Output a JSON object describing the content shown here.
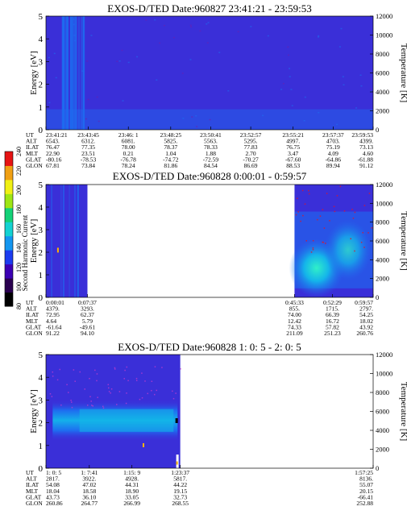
{
  "colors": {
    "background_level": "#3a2fd8",
    "mid_level": "#1e6cf0",
    "high_level": "#12b8e6",
    "peak_level": "#28e6d8",
    "spike_orange": "#ffb400"
  },
  "colorbar": {
    "label": "Second Harmonic Current",
    "ticks": [
      "80",
      "100",
      "120",
      "140",
      "160",
      "180",
      "200",
      "220",
      "240"
    ],
    "colors": [
      "#000000",
      "#2a0050",
      "#3c00b4",
      "#1c3cf0",
      "#1496f0",
      "#14d2d2",
      "#14d278",
      "#9ee614",
      "#f0f014",
      "#f0a014",
      "#e61414"
    ]
  },
  "chart_data": [
    {
      "type": "heatmap",
      "title": "EXOS-D/TED  Date:960827  23:41:21 - 23:59:53",
      "ylabel": "Energy [eV]",
      "y2label": "Temperature [K]",
      "ylim": [
        0,
        5
      ],
      "y2lim": [
        0,
        12000
      ],
      "yticks": [
        "0",
        "1",
        "2",
        "3",
        "4",
        "5"
      ],
      "y2ticks": [
        "0",
        "2000",
        "4000",
        "6000",
        "8000",
        "10000",
        "12000"
      ],
      "row_labels": [
        "UT",
        "ALT",
        "ILAT",
        "MLT",
        "GLAT",
        "GLON"
      ],
      "columns": [
        [
          "23:41:21",
          "6543.",
          "76.47",
          "22.90",
          "-80.16",
          "67.81"
        ],
        [
          "23:43:45",
          "6312.",
          "77.35",
          "23.51",
          "-78.53",
          "73.84"
        ],
        [
          "23:46: 1",
          "6081.",
          "78.00",
          "0.21",
          "-76.78",
          "78.24"
        ],
        [
          "23:48:25",
          "5825.",
          "78.37",
          "1.04",
          "-74.72",
          "81.86"
        ],
        [
          "23:50:41",
          "5563.",
          "78.33",
          "1.88",
          "-72.59",
          "84.54"
        ],
        [
          "23:52:57",
          "5295.",
          "77.83",
          "2.70",
          "-70.27",
          "86.69"
        ],
        [
          "23:55:21",
          "4997.",
          "76.75",
          "3.47",
          "-67.60",
          "88.53"
        ],
        [
          "23:57:37",
          "4703.",
          "75.19",
          "4.09",
          "-64.86",
          "89.94"
        ],
        [
          "23:59:53",
          "4399.",
          "73.13",
          "4.60",
          "-61.88",
          "91.12"
        ]
      ]
    },
    {
      "type": "heatmap",
      "title": "EXOS-D/TED   Date:960828  0:00:01 - 0:59:57",
      "ylabel": "Energy [eV]",
      "y2label": "Temperature [K]",
      "ylim": [
        0,
        5
      ],
      "y2lim": [
        0,
        12000
      ],
      "yticks": [
        "0",
        "1",
        "2",
        "3",
        "4",
        "5"
      ],
      "y2ticks": [
        "0",
        "2000",
        "4000",
        "6000",
        "8000",
        "10000",
        "12000"
      ],
      "row_labels": [
        "UT",
        "ALT",
        "ILAT",
        "MLT",
        "GLAT",
        "GLON"
      ],
      "data_gap": [
        "0:07:37",
        "0:45:33"
      ],
      "columns": [
        [
          "0:00:01",
          "4379.",
          "72.95",
          "4.64",
          "-61.64",
          "91.22"
        ],
        [
          "0:07:37",
          "3293.",
          "62.37",
          "5.79",
          "-49.61",
          "94.10"
        ],
        [
          "0:45:33",
          "855.",
          "74.00",
          "12.42",
          "74.33",
          "211.09"
        ],
        [
          "0:52:29",
          "1715.",
          "66.39",
          "16.72",
          "57.82",
          "251.23"
        ],
        [
          "0:59:57",
          "2797.",
          "54.25",
          "18.02",
          "43.92",
          "260.76"
        ]
      ]
    },
    {
      "type": "heatmap",
      "title": "EXOS-D/TED   Date:960828  1: 0: 5 - 2: 0: 5",
      "ylabel": "Energy [eV]",
      "y2label": "Temperature [K]",
      "ylim": [
        0,
        5
      ],
      "y2lim": [
        0,
        12000
      ],
      "yticks": [
        "0",
        "1",
        "2",
        "3",
        "4",
        "5"
      ],
      "y2ticks": [
        "0",
        "2000",
        "4000",
        "6000",
        "8000",
        "10000",
        "12000"
      ],
      "row_labels": [
        "UT",
        "ALT",
        "ILAT",
        "MLT",
        "GLAT",
        "GLON"
      ],
      "data_gap": [
        "1:23:37",
        "1:57:25"
      ],
      "columns": [
        [
          "1: 0: 5",
          "2817.",
          "54.08",
          "18.04",
          "43.73",
          "260.86"
        ],
        [
          "1: 7:41",
          "3922.",
          "47.02",
          "18.58",
          "36.10",
          "264.77"
        ],
        [
          "1:15: 9",
          "4928.",
          "44.31",
          "18.90",
          "33.05",
          "266.99"
        ],
        [
          "1:23:37",
          "5817.",
          "44.22",
          "19.15",
          "32.73",
          "268.55"
        ],
        [
          "1:57:25",
          "8136.",
          "55.07",
          "20.15",
          "-66.41",
          "252.88"
        ]
      ]
    }
  ]
}
